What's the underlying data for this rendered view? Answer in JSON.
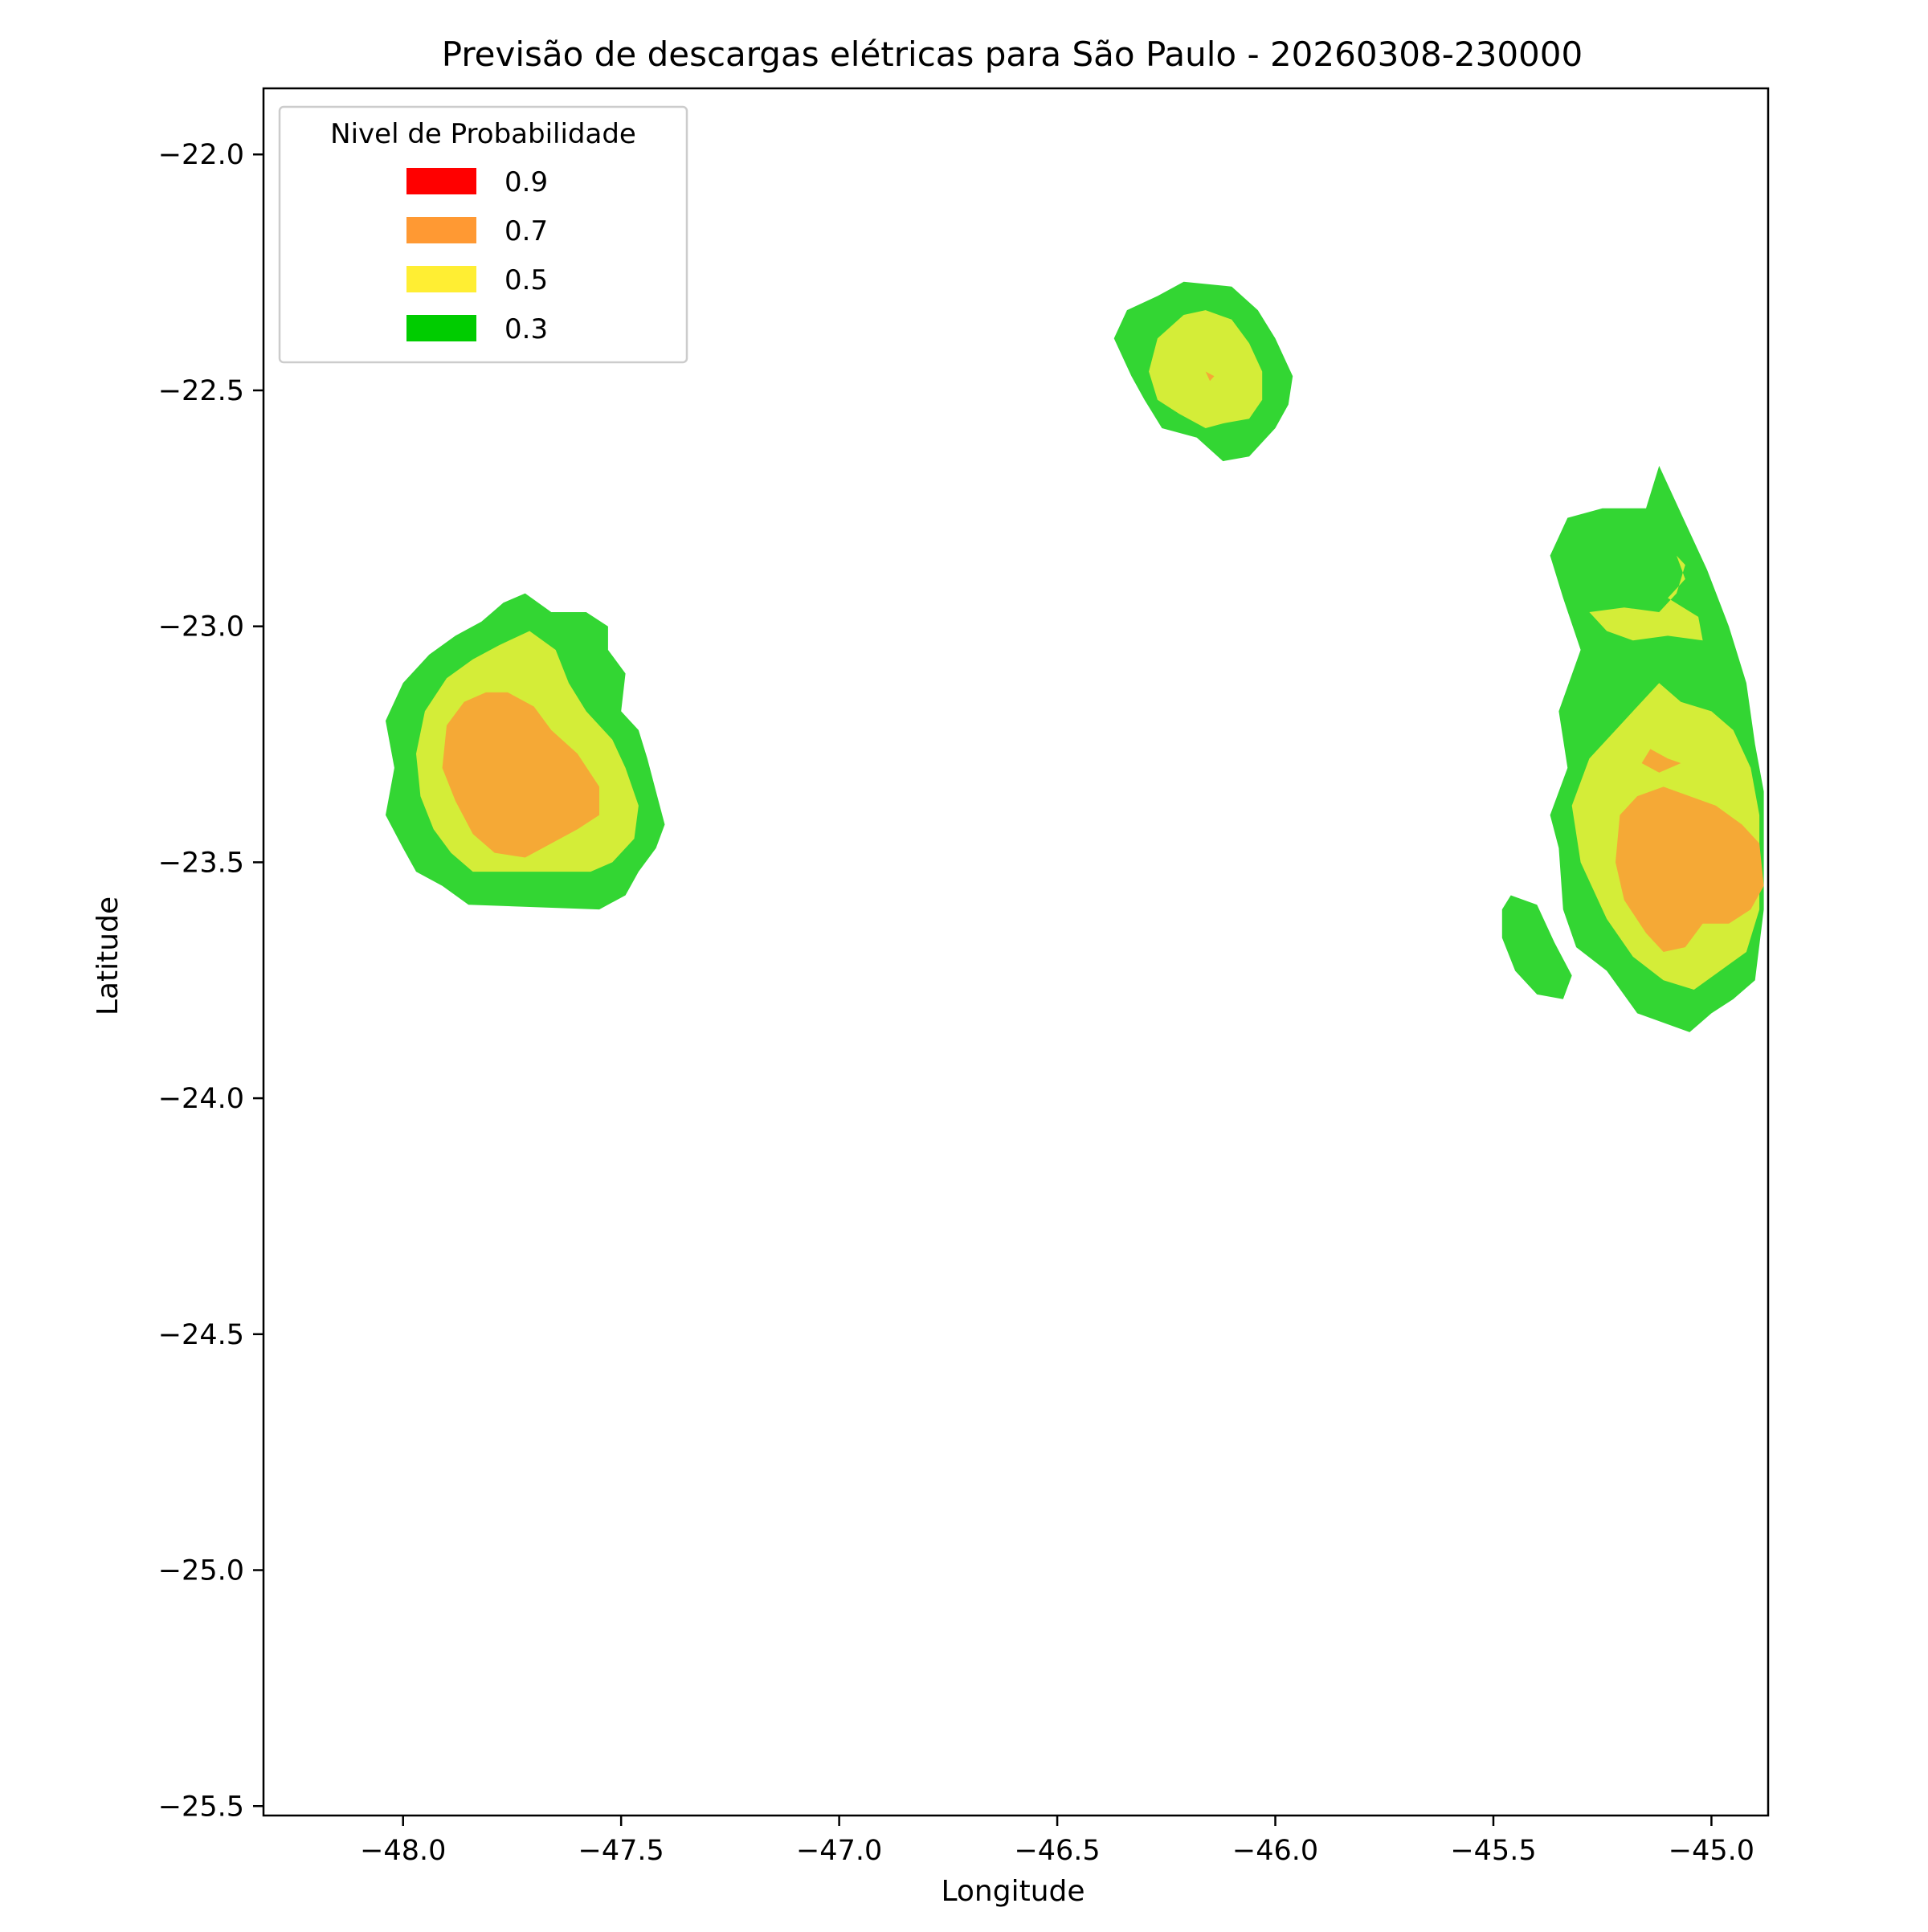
{
  "chart_data": {
    "type": "contour",
    "title": "Previsão de descargas elétricas para São Paulo - 20260308-230000",
    "xlabel": "Longitude",
    "ylabel": "Latitude",
    "xlim": [
      -48.32,
      -44.87
    ],
    "ylim": [
      -25.52,
      -21.86
    ],
    "xticks": [
      -48.0,
      -47.5,
      -47.0,
      -46.5,
      -46.0,
      -45.5,
      -45.0
    ],
    "xtick_labels": [
      "−48.0",
      "−47.5",
      "−47.0",
      "−46.5",
      "−46.0",
      "−45.5",
      "−45.0"
    ],
    "yticks": [
      -22.0,
      -22.5,
      -23.0,
      -23.5,
      -24.0,
      -24.5,
      -25.0,
      -25.5
    ],
    "ytick_labels": [
      "−22.0",
      "−22.5",
      "−23.0",
      "−23.5",
      "−24.0",
      "−24.5",
      "−25.0",
      "−25.5"
    ],
    "grid": false,
    "legend": {
      "title": "Nivel de Probabilidade",
      "placement": "top-left",
      "entries": [
        {
          "label": "0.9",
          "color": "#ff0000"
        },
        {
          "label": "0.7",
          "color": "#ff9933"
        },
        {
          "label": "0.5",
          "color": "#ffee33"
        },
        {
          "label": "0.3",
          "color": "#00cc00"
        }
      ]
    },
    "level_fill_colors": {
      "0.3": "#33d633",
      "0.5": "#d4ed38",
      "0.7": "#f5a936",
      "0.9": "#ff3333"
    },
    "regions": [
      {
        "name": "cell-west",
        "levels": [
          {
            "level": "0.3",
            "polygon": [
              [
                -47.72,
                -22.93
              ],
              [
                -47.66,
                -22.97
              ],
              [
                -47.58,
                -22.97
              ],
              [
                -47.53,
                -23.0
              ],
              [
                -47.53,
                -23.05
              ],
              [
                -47.49,
                -23.1
              ],
              [
                -47.5,
                -23.18
              ],
              [
                -47.46,
                -23.22
              ],
              [
                -47.44,
                -23.28
              ],
              [
                -47.42,
                -23.35
              ],
              [
                -47.4,
                -23.42
              ],
              [
                -47.42,
                -23.47
              ],
              [
                -47.46,
                -23.52
              ],
              [
                -47.49,
                -23.57
              ],
              [
                -47.55,
                -23.6
              ],
              [
                -47.85,
                -23.59
              ],
              [
                -47.91,
                -23.55
              ],
              [
                -47.97,
                -23.52
              ],
              [
                -48.0,
                -23.47
              ],
              [
                -48.04,
                -23.4
              ],
              [
                -48.02,
                -23.3
              ],
              [
                -48.04,
                -23.2
              ],
              [
                -48.0,
                -23.12
              ],
              [
                -47.94,
                -23.06
              ],
              [
                -47.88,
                -23.02
              ],
              [
                -47.82,
                -22.99
              ],
              [
                -47.77,
                -22.95
              ]
            ]
          },
          {
            "level": "0.5",
            "polygon": [
              [
                -47.71,
                -23.01
              ],
              [
                -47.65,
                -23.05
              ],
              [
                -47.62,
                -23.12
              ],
              [
                -47.58,
                -23.18
              ],
              [
                -47.52,
                -23.24
              ],
              [
                -47.49,
                -23.3
              ],
              [
                -47.46,
                -23.38
              ],
              [
                -47.47,
                -23.45
              ],
              [
                -47.52,
                -23.5
              ],
              [
                -47.57,
                -23.52
              ],
              [
                -47.84,
                -23.52
              ],
              [
                -47.89,
                -23.48
              ],
              [
                -47.93,
                -23.43
              ],
              [
                -47.96,
                -23.36
              ],
              [
                -47.97,
                -23.27
              ],
              [
                -47.95,
                -23.18
              ],
              [
                -47.9,
                -23.11
              ],
              [
                -47.84,
                -23.07
              ],
              [
                -47.78,
                -23.04
              ]
            ]
          },
          {
            "level": "0.7",
            "polygon": [
              [
                -47.76,
                -23.14
              ],
              [
                -47.7,
                -23.17
              ],
              [
                -47.66,
                -23.22
              ],
              [
                -47.6,
                -23.27
              ],
              [
                -47.55,
                -23.34
              ],
              [
                -47.55,
                -23.4
              ],
              [
                -47.6,
                -23.43
              ],
              [
                -47.66,
                -23.46
              ],
              [
                -47.72,
                -23.49
              ],
              [
                -47.79,
                -23.48
              ],
              [
                -47.84,
                -23.44
              ],
              [
                -47.88,
                -23.37
              ],
              [
                -47.91,
                -23.3
              ],
              [
                -47.9,
                -23.21
              ],
              [
                -47.86,
                -23.16
              ],
              [
                -47.81,
                -23.14
              ]
            ]
          }
        ]
      },
      {
        "name": "cell-north",
        "levels": [
          {
            "level": "0.3",
            "polygon": [
              [
                -46.21,
                -22.27
              ],
              [
                -46.1,
                -22.28
              ],
              [
                -46.04,
                -22.33
              ],
              [
                -46.0,
                -22.39
              ],
              [
                -45.96,
                -22.47
              ],
              [
                -45.97,
                -22.53
              ],
              [
                -46.0,
                -22.58
              ],
              [
                -46.06,
                -22.64
              ],
              [
                -46.12,
                -22.65
              ],
              [
                -46.18,
                -22.6
              ],
              [
                -46.26,
                -22.58
              ],
              [
                -46.3,
                -22.52
              ],
              [
                -46.33,
                -22.47
              ],
              [
                -46.37,
                -22.39
              ],
              [
                -46.34,
                -22.33
              ],
              [
                -46.27,
                -22.3
              ]
            ]
          },
          {
            "level": "0.5",
            "polygon": [
              [
                -46.16,
                -22.33
              ],
              [
                -46.1,
                -22.35
              ],
              [
                -46.06,
                -22.4
              ],
              [
                -46.03,
                -22.46
              ],
              [
                -46.03,
                -22.52
              ],
              [
                -46.06,
                -22.56
              ],
              [
                -46.12,
                -22.57
              ],
              [
                -46.16,
                -22.58
              ],
              [
                -46.22,
                -22.55
              ],
              [
                -46.27,
                -22.52
              ],
              [
                -46.29,
                -22.46
              ],
              [
                -46.27,
                -22.39
              ],
              [
                -46.21,
                -22.34
              ]
            ]
          },
          {
            "level": "0.7",
            "polygon": [
              [
                -46.16,
                -22.46
              ],
              [
                -46.14,
                -22.47
              ],
              [
                -46.15,
                -22.48
              ]
            ]
          }
        ]
      },
      {
        "name": "cell-east",
        "levels": [
          {
            "level": "0.3",
            "polygon": [
              [
                -45.12,
                -22.66
              ],
              [
                -45.07,
                -22.76
              ],
              [
                -45.01,
                -22.88
              ],
              [
                -44.96,
                -23.0
              ],
              [
                -44.92,
                -23.12
              ],
              [
                -44.9,
                -23.25
              ],
              [
                -44.88,
                -23.35
              ],
              [
                -44.88,
                -23.6
              ],
              [
                -44.9,
                -23.75
              ],
              [
                -44.95,
                -23.79
              ],
              [
                -45.0,
                -23.82
              ],
              [
                -45.05,
                -23.86
              ],
              [
                -45.11,
                -23.84
              ],
              [
                -45.17,
                -23.82
              ],
              [
                -45.24,
                -23.73
              ],
              [
                -45.31,
                -23.68
              ],
              [
                -45.34,
                -23.6
              ],
              [
                -45.35,
                -23.47
              ],
              [
                -45.37,
                -23.4
              ],
              [
                -45.33,
                -23.3
              ],
              [
                -45.35,
                -23.18
              ],
              [
                -45.3,
                -23.05
              ],
              [
                -45.34,
                -22.94
              ],
              [
                -45.37,
                -22.85
              ],
              [
                -45.33,
                -22.77
              ],
              [
                -45.25,
                -22.75
              ],
              [
                -45.15,
                -22.75
              ]
            ]
          },
          {
            "level": "0.3",
            "polygon": [
              [
                -45.46,
                -23.57
              ],
              [
                -45.4,
                -23.59
              ],
              [
                -45.36,
                -23.67
              ],
              [
                -45.32,
                -23.74
              ],
              [
                -45.34,
                -23.79
              ],
              [
                -45.4,
                -23.78
              ],
              [
                -45.45,
                -23.73
              ],
              [
                -45.48,
                -23.66
              ],
              [
                -45.48,
                -23.6
              ]
            ]
          },
          {
            "level": "0.5",
            "polygon": [
              [
                -45.12,
                -23.12
              ],
              [
                -45.07,
                -23.16
              ],
              [
                -45.0,
                -23.18
              ],
              [
                -44.95,
                -23.22
              ],
              [
                -44.91,
                -23.3
              ],
              [
                -44.89,
                -23.4
              ],
              [
                -44.89,
                -23.6
              ],
              [
                -44.92,
                -23.69
              ],
              [
                -44.98,
                -23.73
              ],
              [
                -45.04,
                -23.77
              ],
              [
                -45.11,
                -23.75
              ],
              [
                -45.18,
                -23.7
              ],
              [
                -45.24,
                -23.62
              ],
              [
                -45.3,
                -23.5
              ],
              [
                -45.32,
                -23.38
              ],
              [
                -45.28,
                -23.28
              ],
              [
                -45.2,
                -23.2
              ]
            ]
          },
          {
            "level": "0.5",
            "polygon": [
              [
                -45.08,
                -22.85
              ],
              [
                -45.06,
                -22.9
              ],
              [
                -45.1,
                -22.94
              ],
              [
                -45.03,
                -22.98
              ],
              [
                -45.02,
                -23.03
              ],
              [
                -45.1,
                -23.02
              ],
              [
                -45.18,
                -23.03
              ],
              [
                -45.24,
                -23.01
              ],
              [
                -45.28,
                -22.97
              ],
              [
                -45.2,
                -22.96
              ],
              [
                -45.12,
                -22.97
              ],
              [
                -45.08,
                -22.93
              ],
              [
                -45.06,
                -22.87
              ]
            ]
          },
          {
            "level": "0.7",
            "polygon": [
              [
                -45.11,
                -23.34
              ],
              [
                -45.05,
                -23.36
              ],
              [
                -44.99,
                -23.38
              ],
              [
                -44.93,
                -23.42
              ],
              [
                -44.89,
                -23.46
              ],
              [
                -44.88,
                -23.55
              ],
              [
                -44.91,
                -23.6
              ],
              [
                -44.96,
                -23.63
              ],
              [
                -45.02,
                -23.63
              ],
              [
                -45.06,
                -23.68
              ],
              [
                -45.11,
                -23.69
              ],
              [
                -45.15,
                -23.65
              ],
              [
                -45.2,
                -23.58
              ],
              [
                -45.22,
                -23.5
              ],
              [
                -45.21,
                -23.4
              ],
              [
                -45.17,
                -23.36
              ]
            ]
          },
          {
            "level": "0.7",
            "polygon": [
              [
                -45.14,
                -23.26
              ],
              [
                -45.1,
                -23.28
              ],
              [
                -45.07,
                -23.29
              ],
              [
                -45.12,
                -23.31
              ],
              [
                -45.16,
                -23.29
              ]
            ]
          }
        ]
      }
    ]
  }
}
